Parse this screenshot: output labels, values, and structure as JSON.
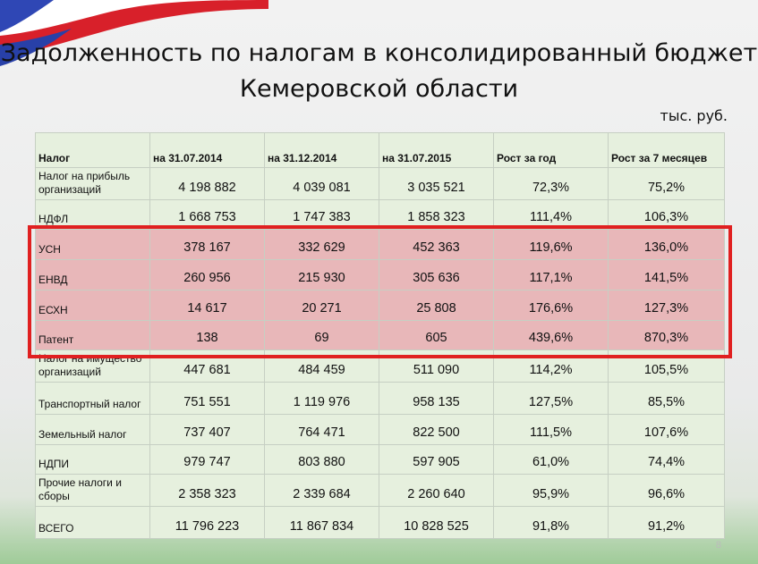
{
  "title": "Задолженность по налогам в консолидированный бюджет Кемеровской области",
  "units": "тыс. руб.",
  "page_number": "8",
  "columns": [
    "Налог",
    "на 31.07.2014",
    "на 31.12.2014",
    "на 31.07.2015",
    "Рост за год",
    "Рост за 7 месяцев"
  ],
  "rows": [
    {
      "name": "Налог на прибыль организаций",
      "c1": "4 198 882",
      "c2": "4 039 081",
      "c3": "3 035 521",
      "c4": "72,3%",
      "c5": "75,2%"
    },
    {
      "name": "НДФЛ",
      "c1": "1 668 753",
      "c2": "1 747 383",
      "c3": "1 858 323",
      "c4": "111,4%",
      "c5": "106,3%"
    },
    {
      "name": "УСН",
      "c1": "378 167",
      "c2": "332 629",
      "c3": "452 363",
      "c4": "119,6%",
      "c5": "136,0%"
    },
    {
      "name": "ЕНВД",
      "c1": "260 956",
      "c2": "215 930",
      "c3": "305 636",
      "c4": "117,1%",
      "c5": "141,5%"
    },
    {
      "name": "ЕСХН",
      "c1": "14 617",
      "c2": "20 271",
      "c3": "25 808",
      "c4": "176,6%",
      "c5": "127,3%"
    },
    {
      "name": "Патент",
      "c1": "138",
      "c2": "69",
      "c3": "605",
      "c4": "439,6%",
      "c5": "870,3%"
    },
    {
      "name": "Налог на имущество организаций",
      "c1": "447 681",
      "c2": "484 459",
      "c3": "511 090",
      "c4": "114,2%",
      "c5": "105,5%"
    },
    {
      "name": "Транспортный налог",
      "c1": "751 551",
      "c2": "1 119 976",
      "c3": "958 135",
      "c4": "127,5%",
      "c5": "85,5%"
    },
    {
      "name": "Земельный налог",
      "c1": "737 407",
      "c2": "764 471",
      "c3": "822 500",
      "c4": "111,5%",
      "c5": "107,6%"
    },
    {
      "name": "НДПИ",
      "c1": "979 747",
      "c2": "803 880",
      "c3": "597 905",
      "c4": "61,0%",
      "c5": "74,4%"
    },
    {
      "name": "Прочие налоги и сборы",
      "c1": "2 358 323",
      "c2": "2 339 684",
      "c3": "2 260 640",
      "c4": "95,9%",
      "c5": "96,6%"
    },
    {
      "name": "ВСЕГО",
      "c1": "11 796 223",
      "c2": "11 867 834",
      "c3": "10 828 525",
      "c4": "91,8%",
      "c5": "91,2%"
    }
  ],
  "colors": {
    "highlight_fill": "#e8b7b9",
    "highlight_border": "#e02020",
    "cell_fill": "#e6f0de"
  }
}
